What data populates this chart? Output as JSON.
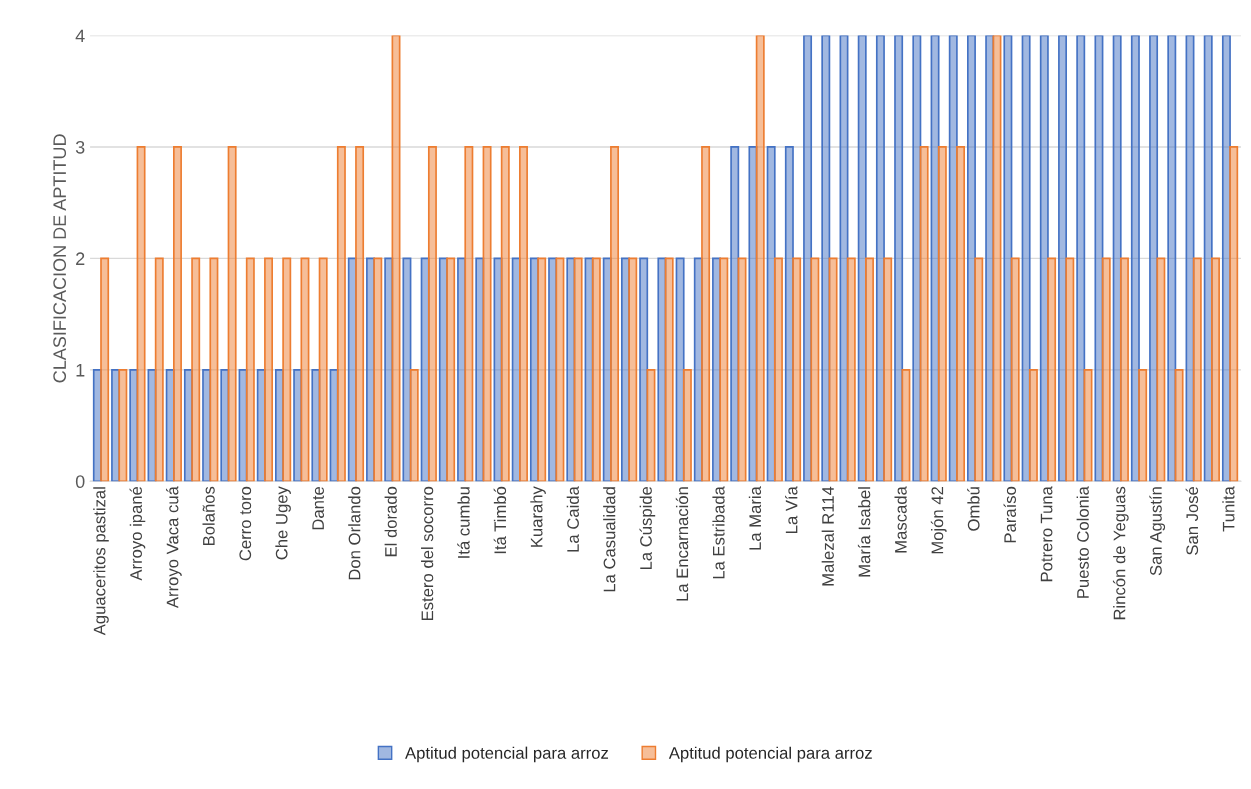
{
  "chart_data": {
    "type": "bar",
    "ylabel": "CLASIFICACION DE APTITUD",
    "categories": [
      "Aguaceritos pastizal",
      null,
      "Arroyo ipané",
      null,
      "Arroyo Vaca cuá",
      null,
      "Bolaños",
      null,
      "Cerro toro",
      null,
      "Che Ugey",
      null,
      "Dante",
      null,
      "Don Orlando",
      null,
      "El dorado",
      null,
      "Estero del socorro",
      null,
      "Itá cumbu",
      null,
      "Itá Timbó",
      null,
      "Kuarahy",
      null,
      "La Caida",
      null,
      "La Casualidad",
      null,
      "La Cúspide",
      null,
      "La Encarnación",
      null,
      "La Estribada",
      null,
      "La Maria",
      null,
      "La Vía",
      null,
      "Malezal R114",
      null,
      "María Isabel",
      null,
      "Mascada",
      null,
      "Mojón 42",
      null,
      "Ombú",
      null,
      "Paraíso",
      null,
      "Potrero Tuna",
      null,
      "Puesto Colonia",
      null,
      "Rincón de Yeguas",
      null,
      "San Agustín",
      null,
      "San José",
      null,
      "Tunita"
    ],
    "series": [
      {
        "name": "Aptitud potencial para arroz",
        "color": "#4472c4",
        "values": [
          1,
          1,
          1,
          1,
          1,
          1,
          1,
          1,
          1,
          1,
          1,
          1,
          1,
          1,
          2,
          2,
          2,
          2,
          2,
          2,
          2,
          2,
          2,
          2,
          2,
          2,
          2,
          2,
          2,
          2,
          2,
          2,
          2,
          2,
          2,
          3,
          3,
          3,
          3,
          4,
          4,
          4,
          4,
          4,
          4,
          4,
          4,
          4,
          4,
          4,
          4,
          4,
          4,
          4,
          4,
          4,
          4,
          4,
          4,
          4,
          4,
          4,
          4
        ]
      },
      {
        "name": "Aptitud potencial para arroz",
        "color": "#ed7d31",
        "values": [
          2,
          1,
          3,
          2,
          3,
          2,
          2,
          3,
          2,
          2,
          2,
          2,
          2,
          3,
          3,
          2,
          4,
          1,
          3,
          2,
          3,
          3,
          3,
          3,
          2,
          2,
          2,
          2,
          3,
          2,
          1,
          2,
          1,
          3,
          2,
          2,
          4,
          2,
          2,
          2,
          2,
          2,
          2,
          2,
          1,
          3,
          3,
          3,
          2,
          4,
          2,
          1,
          2,
          2,
          1,
          2,
          2,
          1,
          2,
          1,
          2,
          2,
          3
        ]
      }
    ],
    "ylim": [
      0,
      4
    ],
    "yticks": [
      0,
      1,
      2,
      3,
      4
    ],
    "grid": "y",
    "legend": "bottom"
  }
}
